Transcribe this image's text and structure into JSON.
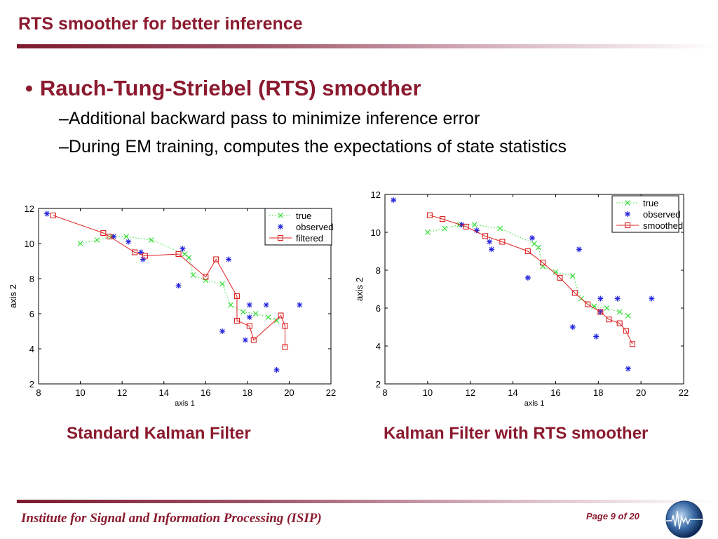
{
  "slide": {
    "title": "RTS smoother for better inference",
    "bullet": "Rauch-Tung-Striebel (RTS) smoother",
    "sub1": "–Additional backward pass to minimize inference error",
    "sub2": "–During EM training, computes the expectations of state statistics",
    "caption_left": "Standard Kalman Filter",
    "caption_right": "Kalman Filter with RTS smoother",
    "footer": "Institute for Signal and Information Processing (ISIP)",
    "page": "Page 9 of 20",
    "accent_color": "#8b1a2e"
  },
  "chart_data": [
    {
      "type": "line",
      "xlabel": "axis 1",
      "ylabel": "axis 2",
      "xlim": [
        8,
        22
      ],
      "ylim": [
        2,
        12
      ],
      "xticks": [
        8,
        10,
        12,
        14,
        16,
        18,
        20,
        22
      ],
      "yticks": [
        2,
        4,
        6,
        8,
        10,
        12
      ],
      "legend_position": "top-right",
      "series": [
        {
          "name": "true",
          "style": "dotted-x",
          "color": "#33dd33",
          "x": [
            10,
            10.8,
            11.5,
            12.2,
            13.4,
            15.0,
            15.2,
            15.4,
            16.0,
            16.8,
            17.2,
            17.8,
            18.4,
            19.0,
            19.4
          ],
          "y": [
            10.0,
            10.2,
            10.4,
            10.4,
            10.2,
            9.4,
            9.2,
            8.2,
            7.9,
            7.7,
            6.5,
            6.1,
            6.0,
            5.8,
            5.6
          ]
        },
        {
          "name": "observed",
          "style": "star",
          "color": "#2222dd",
          "x": [
            8.4,
            11.6,
            12.3,
            12.9,
            13.0,
            14.7,
            14.9,
            16.8,
            17.1,
            17.9,
            18.1,
            18.1,
            18.9,
            19.4,
            20.5
          ],
          "y": [
            11.7,
            10.4,
            10.1,
            9.5,
            9.1,
            7.6,
            9.7,
            5.0,
            9.1,
            4.5,
            5.8,
            6.5,
            6.5,
            2.8,
            6.5
          ]
        },
        {
          "name": "filtered",
          "style": "square-line",
          "color": "#dd2222",
          "x": [
            8.7,
            11.1,
            11.4,
            12.6,
            13.1,
            14.7,
            16.0,
            16.5,
            17.5,
            17.5,
            18.1,
            18.3,
            19.6,
            19.8,
            19.8
          ],
          "y": [
            11.6,
            10.6,
            10.4,
            9.5,
            9.3,
            9.4,
            8.1,
            9.1,
            7.0,
            5.6,
            5.3,
            4.5,
            5.9,
            5.3,
            4.1
          ]
        }
      ]
    },
    {
      "type": "line",
      "xlabel": "axis 1",
      "ylabel": "axis 2",
      "xlim": [
        8,
        22
      ],
      "ylim": [
        2,
        12
      ],
      "xticks": [
        8,
        10,
        12,
        14,
        16,
        18,
        20,
        22
      ],
      "yticks": [
        2,
        4,
        6,
        8,
        10,
        12
      ],
      "legend_position": "top-right",
      "series": [
        {
          "name": "true",
          "style": "dotted-x",
          "color": "#33dd33",
          "x": [
            10,
            10.8,
            11.5,
            12.2,
            13.4,
            15.0,
            15.2,
            15.4,
            16.0,
            16.8,
            17.2,
            17.8,
            18.4,
            19.0,
            19.4
          ],
          "y": [
            10.0,
            10.2,
            10.4,
            10.4,
            10.2,
            9.4,
            9.2,
            8.2,
            7.9,
            7.7,
            6.5,
            6.1,
            6.0,
            5.8,
            5.6
          ]
        },
        {
          "name": "observed",
          "style": "star",
          "color": "#2222dd",
          "x": [
            8.4,
            11.6,
            12.3,
            12.9,
            13.0,
            14.7,
            14.9,
            16.8,
            17.1,
            17.9,
            18.1,
            18.1,
            18.9,
            19.4,
            20.5
          ],
          "y": [
            11.7,
            10.4,
            10.1,
            9.5,
            9.1,
            7.6,
            9.7,
            5.0,
            9.1,
            4.5,
            5.8,
            6.5,
            6.5,
            2.8,
            6.5
          ]
        },
        {
          "name": "smoothed",
          "style": "square-line",
          "color": "#dd2222",
          "x": [
            10.1,
            10.7,
            11.8,
            12.7,
            13.5,
            14.7,
            15.4,
            16.2,
            16.9,
            17.5,
            18.1,
            18.5,
            19.0,
            19.3,
            19.6
          ],
          "y": [
            10.9,
            10.7,
            10.3,
            9.8,
            9.5,
            9.0,
            8.4,
            7.6,
            6.8,
            6.2,
            5.8,
            5.4,
            5.2,
            4.8,
            4.1
          ]
        }
      ]
    }
  ]
}
